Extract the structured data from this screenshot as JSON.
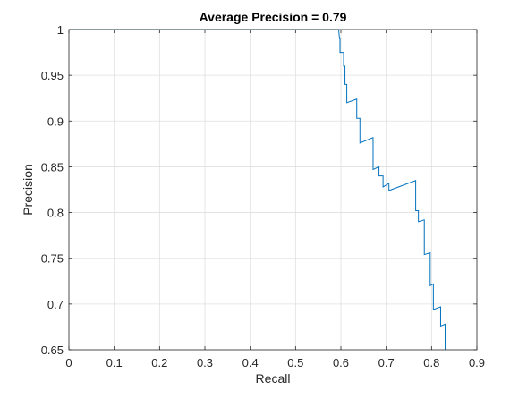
{
  "chart_data": {
    "type": "line",
    "title": "Average Precision = 0.79",
    "xlabel": "Recall",
    "ylabel": "Precision",
    "xlim": [
      0,
      0.9
    ],
    "ylim": [
      0.65,
      1
    ],
    "grid": true,
    "legend": "none",
    "x_ticks": [
      0,
      0.1,
      0.2,
      0.3,
      0.4,
      0.5,
      0.6,
      0.7,
      0.8,
      0.9
    ],
    "x_tick_labels": [
      "0",
      "0.1",
      "0.2",
      "0.3",
      "0.4",
      "0.5",
      "0.6",
      "0.7",
      "0.8",
      "0.9"
    ],
    "y_ticks": [
      0.65,
      0.7,
      0.75,
      0.8,
      0.85,
      0.9,
      0.95,
      1
    ],
    "y_tick_labels": [
      "0.65",
      "0.7",
      "0.75",
      "0.8",
      "0.85",
      "0.9",
      "0.95",
      "1"
    ],
    "series": [
      {
        "color": "#0072BD",
        "points": [
          [
            0.0,
            1.0
          ],
          [
            0.595,
            1.0
          ],
          [
            0.597,
            0.99
          ],
          [
            0.598,
            0.99
          ],
          [
            0.598,
            0.975
          ],
          [
            0.606,
            0.975
          ],
          [
            0.606,
            0.96
          ],
          [
            0.609,
            0.96
          ],
          [
            0.609,
            0.94
          ],
          [
            0.613,
            0.94
          ],
          [
            0.613,
            0.92
          ],
          [
            0.635,
            0.924
          ],
          [
            0.635,
            0.903
          ],
          [
            0.642,
            0.903
          ],
          [
            0.642,
            0.876
          ],
          [
            0.671,
            0.882
          ],
          [
            0.671,
            0.847
          ],
          [
            0.684,
            0.85
          ],
          [
            0.684,
            0.84
          ],
          [
            0.693,
            0.84
          ],
          [
            0.693,
            0.828
          ],
          [
            0.706,
            0.832
          ],
          [
            0.706,
            0.824
          ],
          [
            0.765,
            0.835
          ],
          [
            0.765,
            0.802
          ],
          [
            0.771,
            0.802
          ],
          [
            0.771,
            0.79
          ],
          [
            0.784,
            0.792
          ],
          [
            0.784,
            0.754
          ],
          [
            0.797,
            0.756
          ],
          [
            0.797,
            0.72
          ],
          [
            0.804,
            0.722
          ],
          [
            0.804,
            0.694
          ],
          [
            0.82,
            0.697
          ],
          [
            0.82,
            0.676
          ],
          [
            0.83,
            0.678
          ],
          [
            0.83,
            0.65
          ]
        ]
      }
    ]
  }
}
